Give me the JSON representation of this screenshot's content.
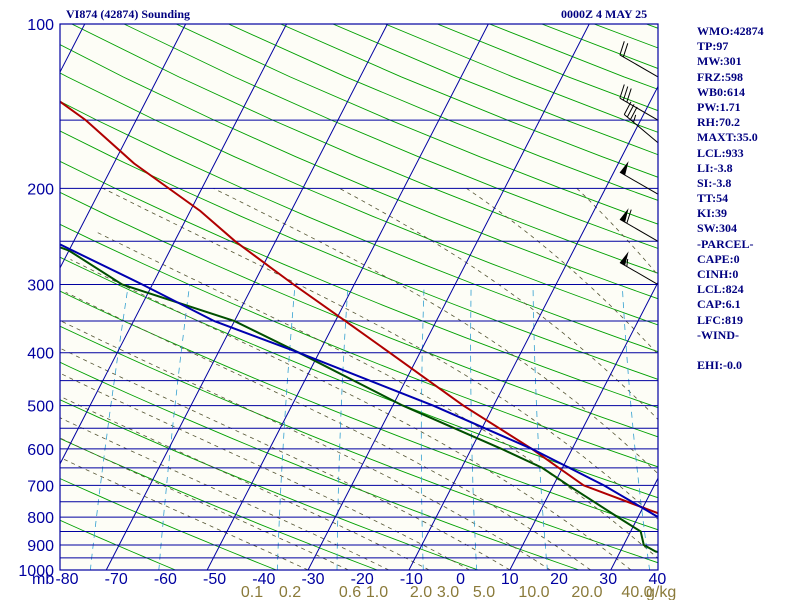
{
  "header": {
    "title": "VI874 (42874) Sounding",
    "time": "0000Z  4 MAY 25"
  },
  "indices": [
    "WMO:42874",
    "TP:97",
    "MW:301",
    "FRZ:598",
    "WB0:614",
    "PW:1.71",
    "RH:70.2",
    "MAXT:35.0",
    "LCL:933",
    "LI:-3.8",
    "SI:-3.8",
    "TT:54",
    "KI:39",
    "SW:304",
    "-PARCEL-",
    "CAPE:0",
    "CINH:0",
    "LCL:824",
    "CAP:6.1",
    "LFC:819",
    "-WIND-",
    "",
    "EHI:-0.0"
  ],
  "chart_data": {
    "type": "line",
    "subtype": "skew-t log-p sounding",
    "pressure_ticks": [
      "100",
      "200",
      "300",
      "400",
      "500",
      "600",
      "700",
      "800",
      "900",
      "1000"
    ],
    "pressure_levels": [
      100,
      200,
      300,
      400,
      500,
      600,
      700,
      800,
      900,
      1000
    ],
    "temperature_ticks": [
      "-80",
      "-70",
      "-60",
      "-50",
      "-40",
      "-30",
      "-20",
      "-10",
      "0",
      "10",
      "20",
      "30",
      "40"
    ],
    "temperature_values": [
      -80,
      -70,
      -60,
      -50,
      -40,
      -30,
      -20,
      -10,
      0,
      10,
      20,
      30,
      40
    ],
    "pressure_unit_label": "mb",
    "mixing_ratio_labels": [
      "0.1",
      "0.2",
      "0.6",
      "1.0",
      "2.0",
      "3.0",
      "5.0",
      "10.0",
      "20.0",
      "40.0"
    ],
    "mixing_ratio_values": [
      0.1,
      0.2,
      0.6,
      1.0,
      2.0,
      3.0,
      5.0,
      10.0,
      20.0,
      40.0
    ],
    "mixing_ratio_unit": "g/kg",
    "grid_temps_skewed": [
      -110,
      -100,
      -90,
      -80,
      -70,
      -60,
      -50,
      -40,
      -30,
      -20,
      -10,
      0,
      10,
      20,
      30,
      40
    ],
    "grid_pressures": [
      100,
      150,
      200,
      250,
      300,
      350,
      400,
      450,
      500,
      550,
      600,
      650,
      700,
      750,
      800,
      850,
      900,
      950,
      1000
    ],
    "series": [
      {
        "role": "temperature",
        "color": "#b00000",
        "points": [
          [
            100,
            -80
          ],
          [
            120,
            -75
          ],
          [
            150,
            -65
          ],
          [
            180,
            -58
          ],
          [
            220,
            -49
          ],
          [
            250,
            -44
          ],
          [
            300,
            -36
          ],
          [
            350,
            -29
          ],
          [
            400,
            -23
          ],
          [
            500,
            -13
          ],
          [
            600,
            -4
          ],
          [
            700,
            3
          ],
          [
            800,
            13
          ],
          [
            850,
            18
          ],
          [
            875,
            22.5
          ],
          [
            900,
            23
          ],
          [
            925,
            23
          ],
          [
            950,
            23.5
          ],
          [
            960,
            21.5
          ],
          [
            975,
            21
          ],
          [
            980,
            20
          ]
        ]
      },
      {
        "role": "dewpoint",
        "color": "#005000",
        "points": [
          [
            150,
            -90
          ],
          [
            200,
            -74
          ],
          [
            250,
            -63
          ],
          [
            260,
            -60
          ],
          [
            300,
            -53
          ],
          [
            350,
            -40
          ],
          [
            400,
            -32
          ],
          [
            500,
            -19
          ],
          [
            600,
            -7
          ],
          [
            650,
            -2
          ],
          [
            700,
            1.5
          ],
          [
            800,
            8
          ],
          [
            850,
            11
          ],
          [
            900,
            12
          ],
          [
            925,
            13.5
          ],
          [
            950,
            17
          ],
          [
            975,
            19
          ]
        ]
      },
      {
        "role": "parcel",
        "color": "#0000b0",
        "points": [
          [
            140,
            -95
          ],
          [
            200,
            -74
          ],
          [
            250,
            -62
          ],
          [
            300,
            -51
          ],
          [
            350,
            -42
          ],
          [
            400,
            -32
          ],
          [
            500,
            -16
          ],
          [
            600,
            -4
          ],
          [
            700,
            5
          ],
          [
            800,
            12
          ],
          [
            850,
            15
          ],
          [
            900,
            20
          ],
          [
            950,
            24
          ],
          [
            990,
            28
          ]
        ]
      }
    ],
    "wind_barbs": [
      {
        "pressure": 125,
        "direction": 300,
        "speed": 20
      },
      {
        "pressure": 150,
        "direction": 300,
        "speed": 30
      },
      {
        "pressure": 165,
        "direction": 310,
        "speed": 35
      },
      {
        "pressure": 205,
        "direction": 300,
        "speed": 50
      },
      {
        "pressure": 250,
        "direction": 300,
        "speed": 60
      },
      {
        "pressure": 300,
        "direction": 300,
        "speed": 55
      }
    ],
    "grid": true
  }
}
